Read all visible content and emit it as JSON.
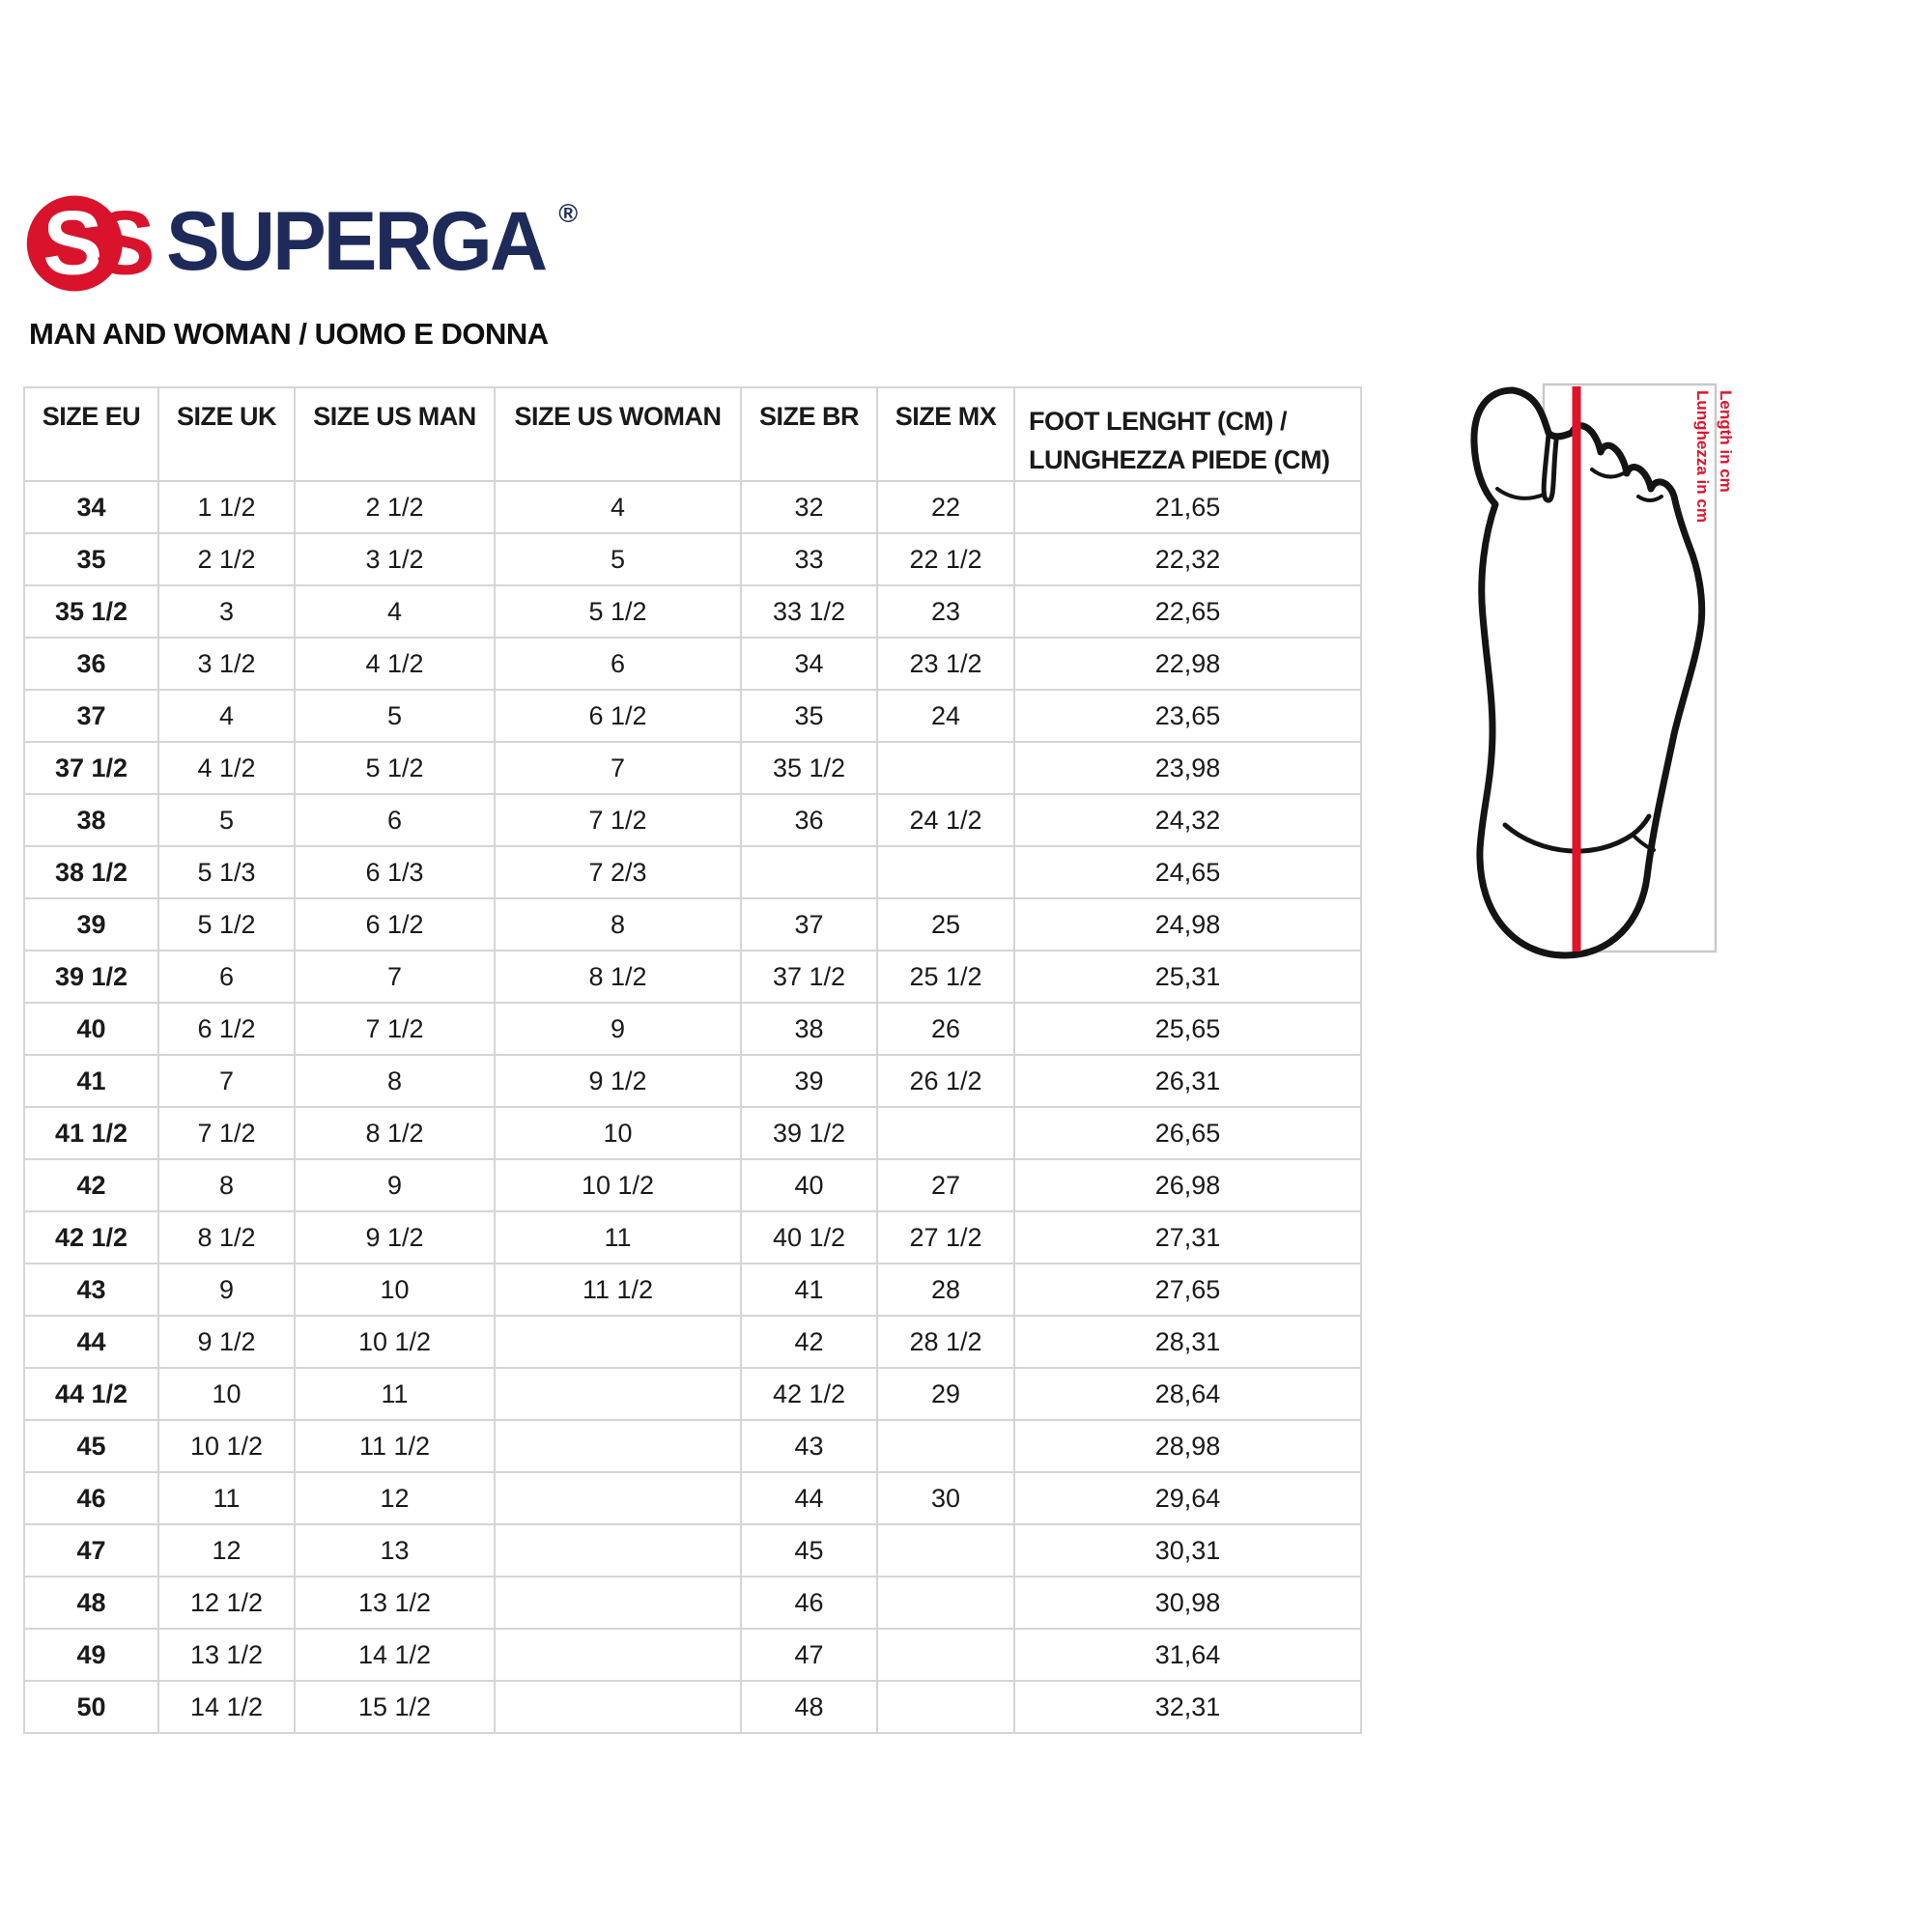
{
  "brand": {
    "name": "SUPERGA",
    "registered_mark": "®",
    "emblem_letter": "S",
    "logo_red": "#d8132b",
    "logo_navy": "#1e2b5a"
  },
  "subtitle": "MAN AND WOMAN / UOMO E DONNA",
  "size_table": {
    "headers": [
      "SIZE EU",
      "SIZE UK",
      "SIZE US MAN",
      "SIZE US WOMAN",
      "SIZE BR",
      "SIZE MX",
      "FOOT LENGHT (CM) /\nLUNGHEZZA PIEDE (CM)"
    ],
    "header_keys": [
      "size-eu",
      "size-uk",
      "size-us-man",
      "size-us-woman",
      "size-br",
      "size-mx",
      "foot-length"
    ],
    "rows": [
      [
        "34",
        "1 1/2",
        "2 1/2",
        "4",
        "32",
        "22",
        "21,65"
      ],
      [
        "35",
        "2 1/2",
        "3 1/2",
        "5",
        "33",
        "22 1/2",
        "22,32"
      ],
      [
        "35 1/2",
        "3",
        "4",
        "5 1/2",
        "33 1/2",
        "23",
        "22,65"
      ],
      [
        "36",
        "3 1/2",
        "4 1/2",
        "6",
        "34",
        "23 1/2",
        "22,98"
      ],
      [
        "37",
        "4",
        "5",
        "6 1/2",
        "35",
        "24",
        "23,65"
      ],
      [
        "37 1/2",
        "4 1/2",
        "5 1/2",
        "7",
        "35 1/2",
        "",
        "23,98"
      ],
      [
        "38",
        "5",
        "6",
        "7 1/2",
        "36",
        "24 1/2",
        "24,32"
      ],
      [
        "38 1/2",
        "5 1/3",
        "6 1/3",
        "7 2/3",
        "",
        "",
        "24,65"
      ],
      [
        "39",
        "5 1/2",
        "6 1/2",
        "8",
        "37",
        "25",
        "24,98"
      ],
      [
        "39 1/2",
        "6",
        "7",
        "8 1/2",
        "37 1/2",
        "25 1/2",
        "25,31"
      ],
      [
        "40",
        "6 1/2",
        "7 1/2",
        "9",
        "38",
        "26",
        "25,65"
      ],
      [
        "41",
        "7",
        "8",
        "9 1/2",
        "39",
        "26 1/2",
        "26,31"
      ],
      [
        "41 1/2",
        "7 1/2",
        "8 1/2",
        "10",
        "39 1/2",
        "",
        "26,65"
      ],
      [
        "42",
        "8",
        "9",
        "10 1/2",
        "40",
        "27",
        "26,98"
      ],
      [
        "42 1/2",
        "8 1/2",
        "9 1/2",
        "11",
        "40 1/2",
        "27 1/2",
        "27,31"
      ],
      [
        "43",
        "9",
        "10",
        "11 1/2",
        "41",
        "28",
        "27,65"
      ],
      [
        "44",
        "9 1/2",
        "10 1/2",
        "",
        "42",
        "28 1/2",
        "28,31"
      ],
      [
        "44 1/2",
        "10",
        "11",
        "",
        "42 1/2",
        "29",
        "28,64"
      ],
      [
        "45",
        "10 1/2",
        "11 1/2",
        "",
        "43",
        "",
        "28,98"
      ],
      [
        "46",
        "11",
        "12",
        "",
        "44",
        "30",
        "29,64"
      ],
      [
        "47",
        "12",
        "13",
        "",
        "45",
        "",
        "30,31"
      ],
      [
        "48",
        "12 1/2",
        "13 1/2",
        "",
        "46",
        "",
        "30,98"
      ],
      [
        "49",
        "13 1/2",
        "14 1/2",
        "",
        "47",
        "",
        "31,64"
      ],
      [
        "50",
        "14 1/2",
        "15 1/2",
        "",
        "48",
        "",
        "32,31"
      ]
    ]
  },
  "foot_diagram": {
    "label_length_en": "Length in cm",
    "label_length_it": "Lunghezza in cm",
    "accent_red": "#e1132b",
    "outline_color": "#141414",
    "frame_color": "#c9c9c9"
  }
}
